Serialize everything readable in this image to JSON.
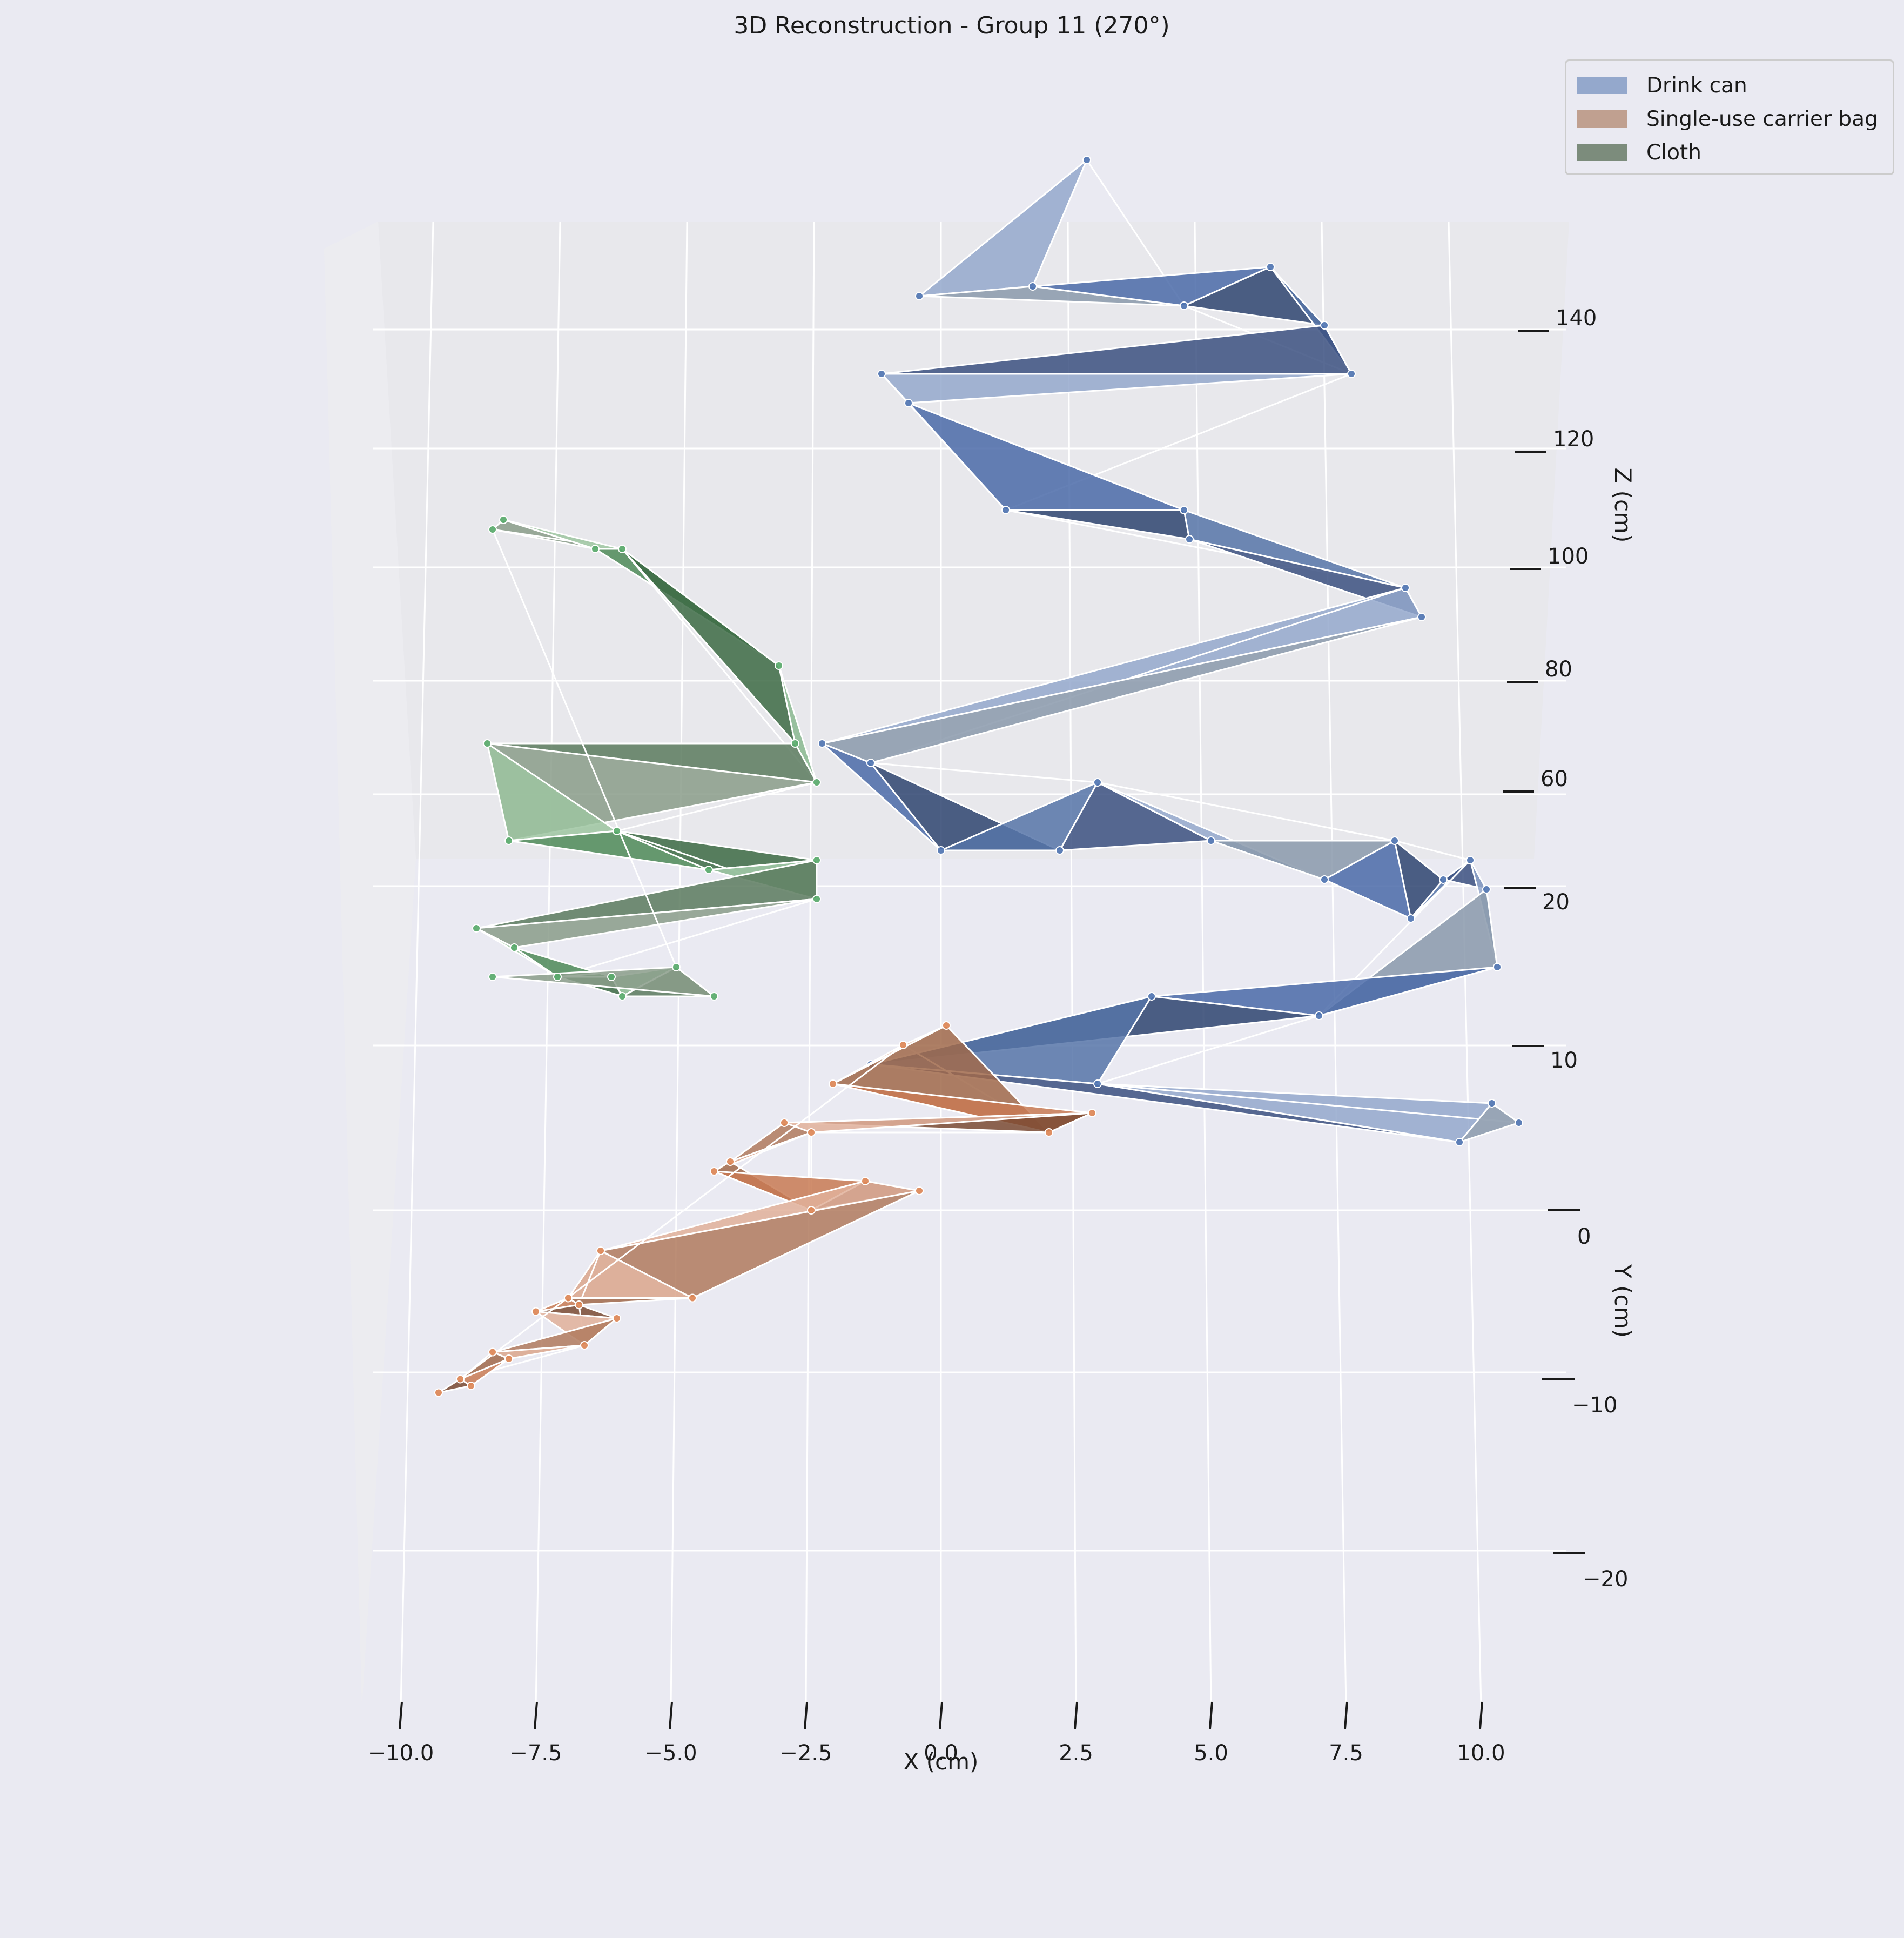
{
  "chart_data": {
    "type": "3d-surface",
    "title": "3D Reconstruction - Group 11 (270°)",
    "xlabel": "X (cm)",
    "ylabel": "Y (cm)",
    "zlabel": "Z (cm)",
    "x_ticks": [
      "−10.0",
      "−7.5",
      "−5.0",
      "−2.5",
      "0.0",
      "2.5",
      "5.0",
      "7.5",
      "10.0"
    ],
    "y_ticks": [
      "0",
      "−10",
      "−20"
    ],
    "z_ticks": [
      "140",
      "120",
      "100",
      "80",
      "60",
      "20",
      "10"
    ],
    "legend_position": "top-right",
    "grid": true,
    "series": [
      {
        "name": "Drink can",
        "color": "#4c72b0",
        "points": [
          [
            2.7,
            108
          ],
          [
            -0.4,
            94
          ],
          [
            1.7,
            95
          ],
          [
            4.5,
            93
          ],
          [
            6.1,
            97
          ],
          [
            7.1,
            91
          ],
          [
            7.6,
            86
          ],
          [
            -1.1,
            86
          ],
          [
            -0.6,
            83
          ],
          [
            1.2,
            72
          ],
          [
            4.5,
            72
          ],
          [
            4.6,
            69
          ],
          [
            8.6,
            64
          ],
          [
            8.9,
            61
          ],
          [
            -2.2,
            48
          ],
          [
            -1.3,
            46
          ],
          [
            0.0,
            37
          ],
          [
            2.2,
            37
          ],
          [
            2.9,
            44
          ],
          [
            5.0,
            38
          ],
          [
            7.1,
            34
          ],
          [
            8.4,
            38
          ],
          [
            8.7,
            30
          ],
          [
            9.3,
            34
          ],
          [
            9.8,
            36
          ],
          [
            10.1,
            33
          ],
          [
            10.3,
            25
          ],
          [
            7.0,
            20
          ],
          [
            3.9,
            22
          ],
          [
            -1.3,
            15
          ],
          [
            2.9,
            13
          ],
          [
            9.6,
            7
          ],
          [
            10.2,
            11
          ],
          [
            10.7,
            9
          ]
        ]
      },
      {
        "name": "Single-use carrier bag",
        "color": "#dd8452",
        "points": [
          [
            -0.7,
            17
          ],
          [
            0.1,
            19
          ],
          [
            -2.0,
            13
          ],
          [
            2.0,
            8
          ],
          [
            2.8,
            10
          ],
          [
            -2.9,
            9
          ],
          [
            -2.4,
            8
          ],
          [
            -3.9,
            5
          ],
          [
            -4.2,
            4
          ],
          [
            -2.4,
            0
          ],
          [
            -1.4,
            3
          ],
          [
            -0.4,
            2
          ],
          [
            -6.3,
            -6
          ],
          [
            -4.6,
            -13
          ],
          [
            -6.9,
            -13
          ],
          [
            -6.7,
            -14
          ],
          [
            -7.5,
            -15
          ],
          [
            -6.0,
            -16
          ],
          [
            -6.6,
            -20
          ],
          [
            -8.3,
            -21
          ],
          [
            -8.0,
            -22
          ],
          [
            -8.9,
            -25
          ],
          [
            -8.7,
            -26
          ],
          [
            -9.3,
            -27
          ]
        ]
      },
      {
        "name": "Cloth",
        "color": "#55a868",
        "points": [
          [
            -8.3,
            70
          ],
          [
            -8.1,
            71
          ],
          [
            -6.4,
            68
          ],
          [
            -5.9,
            68
          ],
          [
            -3.0,
            56
          ],
          [
            -2.7,
            48
          ],
          [
            -2.3,
            44
          ],
          [
            -8.4,
            48
          ],
          [
            -8.0,
            38
          ],
          [
            -6.0,
            39
          ],
          [
            -4.3,
            35
          ],
          [
            -2.3,
            36
          ],
          [
            -2.3,
            32
          ],
          [
            -8.6,
            29
          ],
          [
            -7.9,
            27
          ],
          [
            -7.1,
            24
          ],
          [
            -6.1,
            24
          ],
          [
            -5.9,
            22
          ],
          [
            -4.9,
            25
          ],
          [
            -4.2,
            22
          ],
          [
            -8.3,
            24
          ]
        ]
      }
    ]
  }
}
